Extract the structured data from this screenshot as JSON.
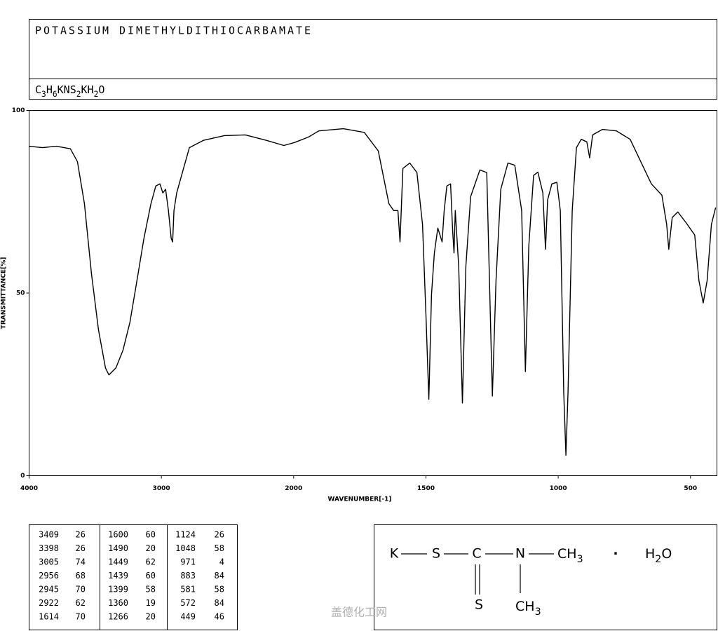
{
  "title": "POTASSIUM DIMETHYLDITHIOCARBAMATE",
  "formula": "C3H6KNS2KH2O",
  "chart_data": {
    "type": "line",
    "ylabel": "TRANSMITTANCE[%]",
    "xlabel": "WAVENUMBER[-1]",
    "xlim": [
      4000,
      400
    ],
    "x_scale_break": 2000,
    "ylim": [
      0,
      100
    ],
    "xticks": [
      4000,
      3000,
      2000,
      1500,
      1000,
      500
    ],
    "yticks": [
      0,
      50,
      100
    ],
    "x": [
      4000,
      3899,
      3794,
      3688,
      3635,
      3582,
      3529,
      3476,
      3423,
      3397,
      3344,
      3291,
      3238,
      3185,
      3132,
      3079,
      3042,
      3011,
      2989,
      2968,
      2947,
      2926,
      2915,
      2905,
      2884,
      2841,
      2788,
      2683,
      2524,
      2365,
      2206,
      2074,
      1997,
      1944,
      1905,
      1812,
      1733,
      1680,
      1640,
      1622,
      1606,
      1598,
      1587,
      1561,
      1534,
      1513,
      1500,
      1489,
      1479,
      1468,
      1455,
      1447,
      1439,
      1431,
      1421,
      1407,
      1399,
      1394,
      1389,
      1376,
      1362,
      1349,
      1331,
      1296,
      1270,
      1249,
      1235,
      1217,
      1190,
      1164,
      1138,
      1124,
      1111,
      1093,
      1077,
      1058,
      1048,
      1040,
      1024,
      1005,
      992,
      979,
      971,
      963,
      947,
      931,
      913,
      892,
      881,
      870,
      833,
      780,
      728,
      688,
      648,
      608,
      590,
      582,
      569,
      548,
      516,
      484,
      468,
      452,
      437,
      421,
      405
    ],
    "series": [
      {
        "color": "#000000",
        "values": [
          90.2,
          89.8,
          90.2,
          89.5,
          86,
          74.5,
          55.4,
          40,
          29.5,
          27.6,
          29.5,
          34.3,
          42,
          53.4,
          65,
          74.5,
          79.3,
          79.9,
          77.4,
          78.4,
          72.6,
          65,
          64,
          72.6,
          77.4,
          83,
          89.8,
          91.8,
          93.1,
          93.3,
          91.8,
          90.4,
          91.2,
          92.7,
          94.4,
          95,
          94,
          88.9,
          74.5,
          72.6,
          72.6,
          64,
          84.1,
          85.6,
          83,
          68.8,
          43.9,
          20.9,
          49.6,
          61,
          67.8,
          65.9,
          64,
          72.6,
          79.3,
          79.9,
          66.9,
          61,
          72.6,
          57.3,
          19.9,
          57.3,
          76.4,
          83.7,
          83,
          21.8,
          53.4,
          78.4,
          85.6,
          85,
          72.6,
          28.5,
          63,
          82.2,
          83.1,
          77.4,
          62,
          75.5,
          79.9,
          80.3,
          72.6,
          22.8,
          5.6,
          22.8,
          72.6,
          89.8,
          92.1,
          91.4,
          87,
          93.3,
          94.8,
          94.4,
          92.1,
          86,
          79.9,
          76.8,
          68.8,
          62,
          70.7,
          72.2,
          69.2,
          65.9,
          53.4,
          47.3,
          53.4,
          68.8,
          73.4
        ]
      }
    ]
  },
  "peak_table": {
    "rows": [
      [
        3409,
        26,
        1600,
        60,
        1124,
        26
      ],
      [
        3398,
        26,
        1490,
        20,
        1048,
        58
      ],
      [
        3005,
        74,
        1449,
        62,
        971,
        4
      ],
      [
        2956,
        68,
        1439,
        60,
        883,
        84
      ],
      [
        2945,
        70,
        1399,
        58,
        581,
        58
      ],
      [
        2922,
        62,
        1360,
        19,
        572,
        84
      ],
      [
        1614,
        70,
        1266,
        20,
        449,
        46
      ]
    ]
  },
  "structure": {
    "atoms": [
      "K",
      "S",
      "C",
      "N",
      "CH3",
      "·",
      "H2O",
      "S",
      "CH3"
    ]
  },
  "watermark": "盖德化工网"
}
